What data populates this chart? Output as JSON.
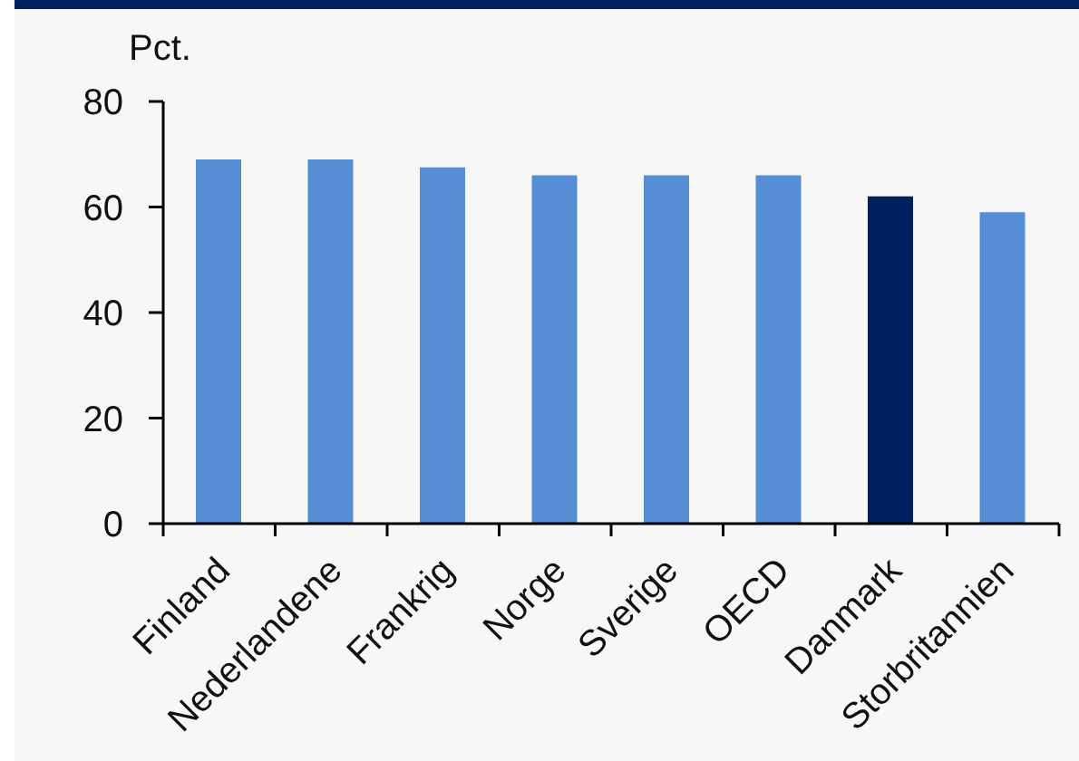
{
  "chart_data": {
    "type": "bar",
    "ylabel": "Pct.",
    "categories": [
      "Finland",
      "Nederlandene",
      "Frankrig",
      "Norge",
      "Sverige",
      "OECD",
      "Danmark",
      "Storbritannien"
    ],
    "values": [
      69,
      69,
      67.5,
      66,
      66,
      66,
      62,
      59
    ],
    "colors": [
      "#558ed5",
      "#558ed5",
      "#558ed5",
      "#558ed5",
      "#558ed5",
      "#558ed5",
      "#002060",
      "#558ed5"
    ],
    "ylim": [
      0,
      80
    ],
    "yticks": [
      0,
      20,
      40,
      60,
      80
    ]
  }
}
